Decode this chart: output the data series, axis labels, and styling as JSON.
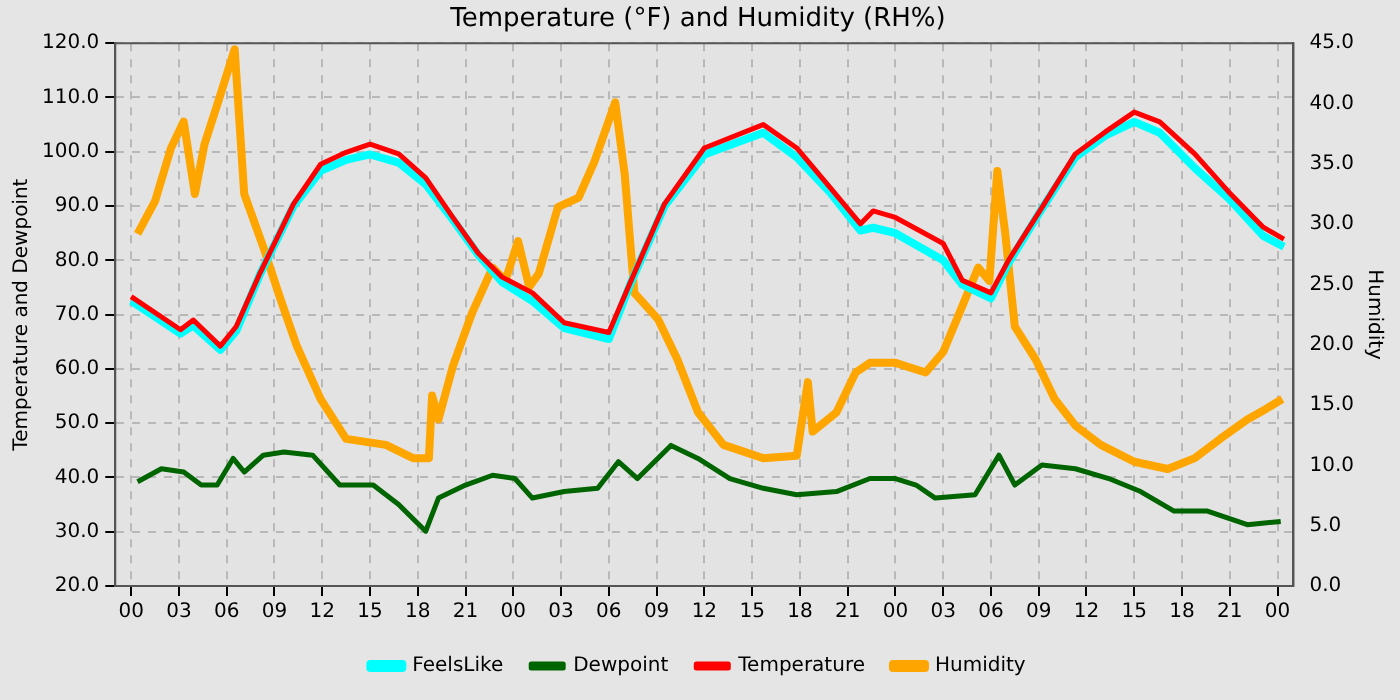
{
  "chart_data": {
    "type": "line",
    "title": "Temperature (°F) and Humidity (RH%)",
    "ylabel": "Temperature and Dewpoint",
    "y2label": "Humidity",
    "xlim": [
      -1,
      73
    ],
    "xticks": [
      {
        "value": 0,
        "label": "00"
      },
      {
        "value": 3,
        "label": "03"
      },
      {
        "value": 6,
        "label": "06"
      },
      {
        "value": 9,
        "label": "09"
      },
      {
        "value": 12,
        "label": "12"
      },
      {
        "value": 15,
        "label": "15"
      },
      {
        "value": 18,
        "label": "18"
      },
      {
        "value": 21,
        "label": "21"
      },
      {
        "value": 24,
        "label": "00"
      },
      {
        "value": 27,
        "label": "03"
      },
      {
        "value": 30,
        "label": "06"
      },
      {
        "value": 33,
        "label": "09"
      },
      {
        "value": 36,
        "label": "12"
      },
      {
        "value": 39,
        "label": "15"
      },
      {
        "value": 42,
        "label": "18"
      },
      {
        "value": 45,
        "label": "21"
      },
      {
        "value": 48,
        "label": "00"
      },
      {
        "value": 51,
        "label": "03"
      },
      {
        "value": 54,
        "label": "06"
      },
      {
        "value": 57,
        "label": "09"
      },
      {
        "value": 60,
        "label": "12"
      },
      {
        "value": 63,
        "label": "15"
      },
      {
        "value": 66,
        "label": "18"
      },
      {
        "value": 69,
        "label": "21"
      },
      {
        "value": 72,
        "label": "00"
      }
    ],
    "ylim": [
      20,
      120
    ],
    "yticks": [
      {
        "value": 20,
        "label": "20.0"
      },
      {
        "value": 30,
        "label": "30.0"
      },
      {
        "value": 40,
        "label": "40.0"
      },
      {
        "value": 50,
        "label": "50.0"
      },
      {
        "value": 60,
        "label": "60.0"
      },
      {
        "value": 70,
        "label": "70.0"
      },
      {
        "value": 80,
        "label": "80.0"
      },
      {
        "value": 90,
        "label": "90.0"
      },
      {
        "value": 100,
        "label": "100.0"
      },
      {
        "value": 110,
        "label": "110.0"
      },
      {
        "value": 120,
        "label": "120.0"
      }
    ],
    "y2lim": [
      0,
      45
    ],
    "y2ticks": [
      {
        "value": 0,
        "label": "0.0"
      },
      {
        "value": 5,
        "label": "5.0"
      },
      {
        "value": 10,
        "label": "10.0"
      },
      {
        "value": 15,
        "label": "15.0"
      },
      {
        "value": 20,
        "label": "20.0"
      },
      {
        "value": 25,
        "label": "25.0"
      },
      {
        "value": 30,
        "label": "30.0"
      },
      {
        "value": 35,
        "label": "35.0"
      },
      {
        "value": 40,
        "label": "40.0"
      },
      {
        "value": 45,
        "label": "45.0"
      }
    ],
    "grid": true,
    "legend": "bottom",
    "marker": "none",
    "line_style": "solid",
    "series": [
      {
        "name": "FeelsLike",
        "color": "#00ffff",
        "x": [
          0,
          3.1,
          3.9,
          5.6,
          6.6,
          8.1,
          10.2,
          11.9,
          13.5,
          15,
          16.8,
          18.5,
          20.2,
          21.8,
          23.3,
          25.2,
          27.2,
          30,
          31.4,
          33.5,
          36,
          39.7,
          41.8,
          43.9,
          45.8,
          46.6,
          48,
          51,
          52.2,
          54,
          55.1,
          57.2,
          59.3,
          61.2,
          63,
          64.6,
          66.8,
          68.9,
          71.1,
          72.4
        ],
        "values": [
          72.5,
          66.5,
          68,
          63.5,
          67,
          77.5,
          90,
          96.5,
          98.5,
          99.5,
          98,
          94,
          87.5,
          81,
          76,
          72.5,
          67.5,
          65.5,
          76,
          90,
          99.5,
          103.5,
          99,
          92.5,
          85.5,
          86,
          85,
          80,
          75.5,
          73,
          79.5,
          89.5,
          99,
          103,
          105.5,
          103.5,
          97,
          91.5,
          84.5,
          82.5
        ]
      },
      {
        "name": "Dewpoint",
        "color": "#006400",
        "x": [
          0.4,
          1.9,
          3.3,
          4.4,
          5.4,
          6.4,
          7.1,
          8.3,
          9.6,
          11.4,
          13.1,
          15.2,
          16.8,
          18.5,
          19.3,
          21,
          22.7,
          24.1,
          25.2,
          27.2,
          29.3,
          30.6,
          31.8,
          33.9,
          35.6,
          37.6,
          39.7,
          41.8,
          44.3,
          46.4,
          48,
          49.3,
          50.5,
          53,
          54.5,
          55.5,
          57.2,
          59.3,
          61.4,
          63.4,
          65.5,
          67.6,
          70.1,
          72.2
        ],
        "values": [
          39.2,
          41.6,
          41,
          38.6,
          38.6,
          43.5,
          41,
          44.1,
          44.7,
          44.1,
          38.6,
          38.6,
          35,
          30.1,
          36.2,
          38.6,
          40.4,
          39.8,
          36.2,
          37.4,
          38,
          42.9,
          39.8,
          45.9,
          43.5,
          39.8,
          38,
          36.8,
          37.4,
          39.8,
          39.8,
          38.6,
          36.2,
          36.8,
          44.1,
          38.6,
          42.3,
          41.6,
          39.8,
          37.4,
          33.8,
          33.8,
          31.3,
          31.9
        ]
      },
      {
        "name": "Temperature",
        "color": "#ff0000",
        "x": [
          0,
          3.1,
          3.9,
          5.6,
          6.6,
          8.1,
          10.2,
          11.9,
          13.5,
          15,
          16.8,
          18.5,
          20.2,
          21.8,
          23.3,
          25.2,
          27.2,
          30,
          31.4,
          33.5,
          36,
          39.7,
          41.8,
          43.9,
          45.8,
          46.6,
          48,
          51,
          52.2,
          54,
          55.1,
          57.2,
          59.3,
          61.2,
          63,
          64.6,
          66.8,
          68.9,
          71.1,
          72.4
        ],
        "values": [
          73.3,
          67.2,
          69,
          64.2,
          67.8,
          77.7,
          90.4,
          97.7,
          99.9,
          101.4,
          99.6,
          95.2,
          87.9,
          81.3,
          76.9,
          74,
          68.5,
          66.7,
          76.3,
          90.4,
          100.7,
          105,
          100.7,
          93.4,
          86.7,
          89.1,
          87.9,
          83.1,
          76.3,
          74,
          80,
          89.7,
          99.6,
          103.7,
          107.3,
          105.5,
          99.6,
          92.7,
          86.1,
          83.9
        ]
      },
      {
        "name": "Humidity",
        "color": "#ffa500",
        "axis": "y2",
        "x": [
          0.4,
          1.5,
          2.5,
          3.3,
          4,
          4.6,
          5.6,
          6.5,
          7.1,
          8.3,
          9.4,
          10.4,
          11.9,
          13.5,
          16,
          17.7,
          18.7,
          18.9,
          19.3,
          20.2,
          21.4,
          22.7,
          23.5,
          24.3,
          25,
          25.6,
          26.8,
          28.1,
          29.1,
          30.4,
          31,
          31.6,
          33.1,
          34.3,
          35.6,
          37.2,
          39.7,
          41.8,
          42.5,
          42.8,
          44.3,
          45.5,
          46.4,
          48,
          49.9,
          51,
          52.2,
          53.2,
          53.9,
          54.4,
          54.9,
          55.5,
          56.8,
          58,
          59.3,
          60.9,
          63,
          65.1,
          66.8,
          68.4,
          70.1,
          71.3,
          72.3
        ],
        "values": [
          29.2,
          31.9,
          36.3,
          38.5,
          32.5,
          36.6,
          40.7,
          44.5,
          32.5,
          28.1,
          23.7,
          19.9,
          15.5,
          12.2,
          11.7,
          10.6,
          10.6,
          15.8,
          13.8,
          18.2,
          22.6,
          26.4,
          25.3,
          28.6,
          24.8,
          25.9,
          31.4,
          32.2,
          35.2,
          40.1,
          34.1,
          24.3,
          22.1,
          18.8,
          14.4,
          11.7,
          10.6,
          10.8,
          16.9,
          12.8,
          14.4,
          17.7,
          18.5,
          18.5,
          17.7,
          19.4,
          23.2,
          26.4,
          25.3,
          34.4,
          29.2,
          21.5,
          18.8,
          15.5,
          13.3,
          11.7,
          10.3,
          9.7,
          10.6,
          12.2,
          13.8,
          14.7,
          15.5
        ]
      }
    ]
  }
}
